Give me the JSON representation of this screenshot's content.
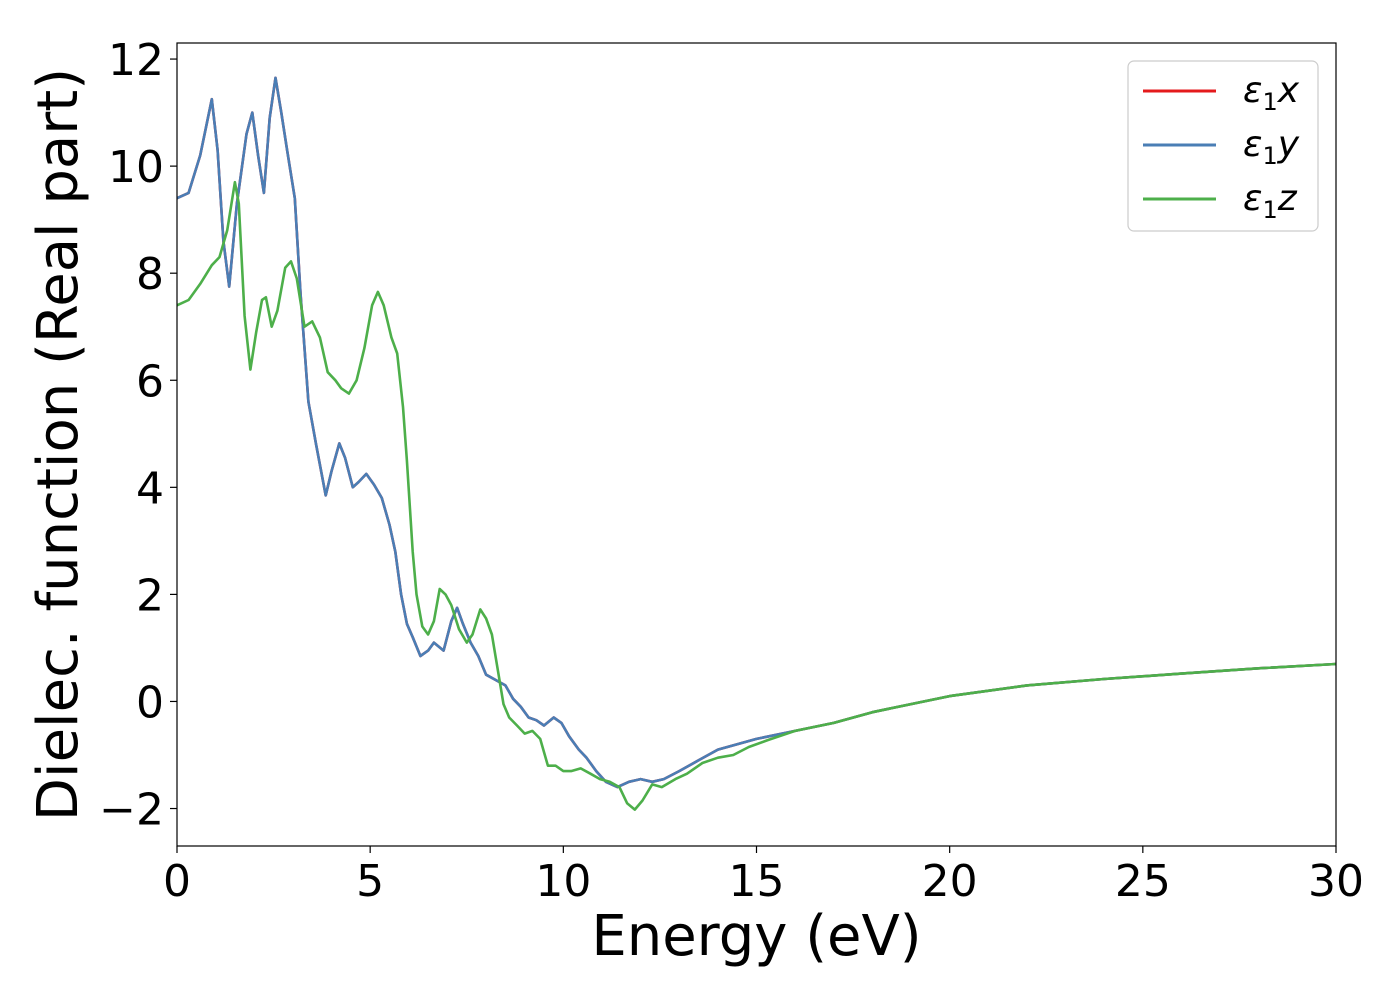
{
  "chart_data": {
    "type": "line",
    "xlabel": "Energy (eV)",
    "ylabel": "Dielec. function (Real part)",
    "xlim": [
      0,
      30
    ],
    "ylim": [
      -2.7,
      12.3
    ],
    "xticks": [
      0,
      5,
      10,
      15,
      20,
      25,
      30
    ],
    "yticks": [
      -2,
      0,
      2,
      4,
      6,
      8,
      10,
      12
    ],
    "ytick_labels": [
      "−2",
      "0",
      "2",
      "4",
      "6",
      "8",
      "10",
      "12"
    ],
    "grid": false,
    "legend_position": "top-right",
    "series": [
      {
        "name": "ε₁x",
        "legend_main": "ε",
        "legend_sub": "1",
        "legend_tail": "x",
        "color": "#e41a1c",
        "points": [
          [
            0,
            9.4
          ],
          [
            0.3,
            9.5
          ],
          [
            0.6,
            10.2
          ],
          [
            0.9,
            11.25
          ],
          [
            1.05,
            10.3
          ],
          [
            1.2,
            8.6
          ],
          [
            1.35,
            7.75
          ],
          [
            1.55,
            9.3
          ],
          [
            1.8,
            10.6
          ],
          [
            1.95,
            11.0
          ],
          [
            2.1,
            10.2
          ],
          [
            2.25,
            9.5
          ],
          [
            2.4,
            10.9
          ],
          [
            2.55,
            11.65
          ],
          [
            2.7,
            11.0
          ],
          [
            2.85,
            10.3
          ],
          [
            3.05,
            9.4
          ],
          [
            3.2,
            7.6
          ],
          [
            3.4,
            5.6
          ],
          [
            3.6,
            4.8
          ],
          [
            3.85,
            3.85
          ],
          [
            4.0,
            4.3
          ],
          [
            4.2,
            4.82
          ],
          [
            4.35,
            4.55
          ],
          [
            4.55,
            4.0
          ],
          [
            4.7,
            4.1
          ],
          [
            4.9,
            4.25
          ],
          [
            5.1,
            4.05
          ],
          [
            5.3,
            3.8
          ],
          [
            5.5,
            3.3
          ],
          [
            5.65,
            2.8
          ],
          [
            5.8,
            2.0
          ],
          [
            5.95,
            1.45
          ],
          [
            6.1,
            1.2
          ],
          [
            6.3,
            0.85
          ],
          [
            6.5,
            0.95
          ],
          [
            6.65,
            1.1
          ],
          [
            6.9,
            0.95
          ],
          [
            7.1,
            1.5
          ],
          [
            7.25,
            1.75
          ],
          [
            7.4,
            1.45
          ],
          [
            7.6,
            1.1
          ],
          [
            7.8,
            0.85
          ],
          [
            8.0,
            0.5
          ],
          [
            8.25,
            0.4
          ],
          [
            8.5,
            0.3
          ],
          [
            8.7,
            0.05
          ],
          [
            8.9,
            -0.1
          ],
          [
            9.1,
            -0.3
          ],
          [
            9.3,
            -0.35
          ],
          [
            9.5,
            -0.45
          ],
          [
            9.75,
            -0.3
          ],
          [
            9.95,
            -0.4
          ],
          [
            10.15,
            -0.65
          ],
          [
            10.4,
            -0.9
          ],
          [
            10.6,
            -1.05
          ],
          [
            10.85,
            -1.3
          ],
          [
            11.1,
            -1.5
          ],
          [
            11.4,
            -1.6
          ],
          [
            11.7,
            -1.5
          ],
          [
            12.0,
            -1.45
          ],
          [
            12.3,
            -1.5
          ],
          [
            12.6,
            -1.45
          ],
          [
            13.0,
            -1.3
          ],
          [
            13.5,
            -1.1
          ],
          [
            14.0,
            -0.9
          ],
          [
            14.5,
            -0.8
          ],
          [
            15.0,
            -0.7
          ],
          [
            16.0,
            -0.55
          ],
          [
            17.0,
            -0.4
          ],
          [
            18.0,
            -0.2
          ],
          [
            19.0,
            -0.05
          ],
          [
            20.0,
            0.1
          ],
          [
            22.0,
            0.3
          ],
          [
            24.0,
            0.42
          ],
          [
            26.0,
            0.52
          ],
          [
            28.0,
            0.62
          ],
          [
            30.0,
            0.7
          ]
        ]
      },
      {
        "name": "ε₁y",
        "legend_main": "ε",
        "legend_sub": "1",
        "legend_tail": "y",
        "color": "#4a7eb5",
        "points": [
          [
            0,
            9.4
          ],
          [
            0.3,
            9.5
          ],
          [
            0.6,
            10.2
          ],
          [
            0.9,
            11.25
          ],
          [
            1.05,
            10.3
          ],
          [
            1.2,
            8.6
          ],
          [
            1.35,
            7.75
          ],
          [
            1.55,
            9.3
          ],
          [
            1.8,
            10.6
          ],
          [
            1.95,
            11.0
          ],
          [
            2.1,
            10.2
          ],
          [
            2.25,
            9.5
          ],
          [
            2.4,
            10.9
          ],
          [
            2.55,
            11.65
          ],
          [
            2.7,
            11.0
          ],
          [
            2.85,
            10.3
          ],
          [
            3.05,
            9.4
          ],
          [
            3.2,
            7.6
          ],
          [
            3.4,
            5.6
          ],
          [
            3.6,
            4.8
          ],
          [
            3.85,
            3.85
          ],
          [
            4.0,
            4.3
          ],
          [
            4.2,
            4.82
          ],
          [
            4.35,
            4.55
          ],
          [
            4.55,
            4.0
          ],
          [
            4.7,
            4.1
          ],
          [
            4.9,
            4.25
          ],
          [
            5.1,
            4.05
          ],
          [
            5.3,
            3.8
          ],
          [
            5.5,
            3.3
          ],
          [
            5.65,
            2.8
          ],
          [
            5.8,
            2.0
          ],
          [
            5.95,
            1.45
          ],
          [
            6.1,
            1.2
          ],
          [
            6.3,
            0.85
          ],
          [
            6.5,
            0.95
          ],
          [
            6.65,
            1.1
          ],
          [
            6.9,
            0.95
          ],
          [
            7.1,
            1.5
          ],
          [
            7.25,
            1.75
          ],
          [
            7.4,
            1.45
          ],
          [
            7.6,
            1.1
          ],
          [
            7.8,
            0.85
          ],
          [
            8.0,
            0.5
          ],
          [
            8.25,
            0.4
          ],
          [
            8.5,
            0.3
          ],
          [
            8.7,
            0.05
          ],
          [
            8.9,
            -0.1
          ],
          [
            9.1,
            -0.3
          ],
          [
            9.3,
            -0.35
          ],
          [
            9.5,
            -0.45
          ],
          [
            9.75,
            -0.3
          ],
          [
            9.95,
            -0.4
          ],
          [
            10.15,
            -0.65
          ],
          [
            10.4,
            -0.9
          ],
          [
            10.6,
            -1.05
          ],
          [
            10.85,
            -1.3
          ],
          [
            11.1,
            -1.5
          ],
          [
            11.4,
            -1.6
          ],
          [
            11.7,
            -1.5
          ],
          [
            12.0,
            -1.45
          ],
          [
            12.3,
            -1.5
          ],
          [
            12.6,
            -1.45
          ],
          [
            13.0,
            -1.3
          ],
          [
            13.5,
            -1.1
          ],
          [
            14.0,
            -0.9
          ],
          [
            14.5,
            -0.8
          ],
          [
            15.0,
            -0.7
          ],
          [
            16.0,
            -0.55
          ],
          [
            17.0,
            -0.4
          ],
          [
            18.0,
            -0.2
          ],
          [
            19.0,
            -0.05
          ],
          [
            20.0,
            0.1
          ],
          [
            22.0,
            0.3
          ],
          [
            24.0,
            0.42
          ],
          [
            26.0,
            0.52
          ],
          [
            28.0,
            0.62
          ],
          [
            30.0,
            0.7
          ]
        ]
      },
      {
        "name": "ε₁z",
        "legend_main": "ε",
        "legend_sub": "1",
        "legend_tail": "z",
        "color": "#4daf4a",
        "points": [
          [
            0,
            7.4
          ],
          [
            0.3,
            7.5
          ],
          [
            0.6,
            7.8
          ],
          [
            0.9,
            8.15
          ],
          [
            1.1,
            8.3
          ],
          [
            1.3,
            8.8
          ],
          [
            1.5,
            9.7
          ],
          [
            1.6,
            9.3
          ],
          [
            1.75,
            7.2
          ],
          [
            1.9,
            6.2
          ],
          [
            2.05,
            6.9
          ],
          [
            2.2,
            7.5
          ],
          [
            2.3,
            7.55
          ],
          [
            2.45,
            7.0
          ],
          [
            2.6,
            7.3
          ],
          [
            2.8,
            8.1
          ],
          [
            2.95,
            8.22
          ],
          [
            3.1,
            7.9
          ],
          [
            3.3,
            7.0
          ],
          [
            3.5,
            7.1
          ],
          [
            3.7,
            6.8
          ],
          [
            3.9,
            6.15
          ],
          [
            4.1,
            6.0
          ],
          [
            4.25,
            5.85
          ],
          [
            4.45,
            5.75
          ],
          [
            4.65,
            6.0
          ],
          [
            4.85,
            6.6
          ],
          [
            5.05,
            7.4
          ],
          [
            5.2,
            7.65
          ],
          [
            5.35,
            7.4
          ],
          [
            5.55,
            6.8
          ],
          [
            5.7,
            6.5
          ],
          [
            5.85,
            5.5
          ],
          [
            5.95,
            4.5
          ],
          [
            6.1,
            2.8
          ],
          [
            6.2,
            2.0
          ],
          [
            6.35,
            1.4
          ],
          [
            6.5,
            1.25
          ],
          [
            6.65,
            1.5
          ],
          [
            6.8,
            2.1
          ],
          [
            6.95,
            2.0
          ],
          [
            7.1,
            1.8
          ],
          [
            7.3,
            1.35
          ],
          [
            7.5,
            1.1
          ],
          [
            7.65,
            1.25
          ],
          [
            7.85,
            1.72
          ],
          [
            8.0,
            1.55
          ],
          [
            8.15,
            1.25
          ],
          [
            8.3,
            0.6
          ],
          [
            8.45,
            -0.05
          ],
          [
            8.6,
            -0.3
          ],
          [
            8.8,
            -0.45
          ],
          [
            9.0,
            -0.6
          ],
          [
            9.2,
            -0.55
          ],
          [
            9.4,
            -0.7
          ],
          [
            9.6,
            -1.2
          ],
          [
            9.8,
            -1.2
          ],
          [
            10.0,
            -1.3
          ],
          [
            10.2,
            -1.3
          ],
          [
            10.45,
            -1.25
          ],
          [
            10.7,
            -1.35
          ],
          [
            10.95,
            -1.45
          ],
          [
            11.2,
            -1.5
          ],
          [
            11.45,
            -1.6
          ],
          [
            11.65,
            -1.9
          ],
          [
            11.85,
            -2.02
          ],
          [
            12.05,
            -1.85
          ],
          [
            12.3,
            -1.55
          ],
          [
            12.55,
            -1.6
          ],
          [
            12.9,
            -1.45
          ],
          [
            13.2,
            -1.35
          ],
          [
            13.6,
            -1.15
          ],
          [
            14.0,
            -1.05
          ],
          [
            14.4,
            -1.0
          ],
          [
            14.8,
            -0.85
          ],
          [
            15.3,
            -0.72
          ],
          [
            16.0,
            -0.55
          ],
          [
            17.0,
            -0.4
          ],
          [
            18.0,
            -0.2
          ],
          [
            19.0,
            -0.05
          ],
          [
            20.0,
            0.1
          ],
          [
            22.0,
            0.3
          ],
          [
            24.0,
            0.42
          ],
          [
            26.0,
            0.52
          ],
          [
            28.0,
            0.62
          ],
          [
            30.0,
            0.7
          ]
        ]
      }
    ]
  }
}
